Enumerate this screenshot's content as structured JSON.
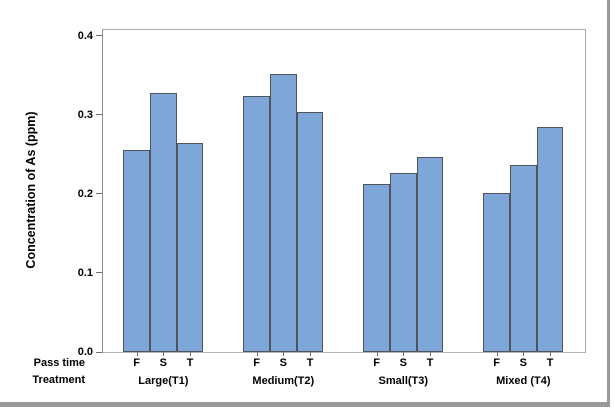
{
  "chart_data": {
    "type": "bar",
    "ylabel": "Concentration of As (ppm)",
    "row_labels": [
      "Pass time",
      "Treatment"
    ],
    "ylim": [
      0.0,
      0.4
    ],
    "yticks": [
      {
        "value": 0.0,
        "label": "0.0"
      },
      {
        "value": 0.1,
        "label": "0.1"
      },
      {
        "value": 0.2,
        "label": "0.2"
      },
      {
        "value": 0.3,
        "label": "0.3"
      },
      {
        "value": 0.4,
        "label": "0.4"
      }
    ],
    "subcategories": [
      "F",
      "S",
      "T"
    ],
    "groups": [
      {
        "label": "Large(T1)",
        "values": [
          0.255,
          0.327,
          0.264
        ]
      },
      {
        "label": "Medium(T2)",
        "values": [
          0.324,
          0.351,
          0.304
        ]
      },
      {
        "label": "Small(T3)",
        "values": [
          0.213,
          0.226,
          0.246
        ]
      },
      {
        "label": "Mixed (T4)",
        "values": [
          0.201,
          0.237,
          0.285
        ]
      }
    ],
    "legend": null,
    "grid": false,
    "colors": {
      "bar_fill": "#7ea6d8",
      "bar_border": "#50555b",
      "axis_line": "#8c8c8c",
      "plot_border": "#ababab",
      "bottom_axis": "#b4b4b4",
      "tick": "#6e6e6e",
      "text": "#000000",
      "window_border": "#9a9a9a"
    }
  }
}
